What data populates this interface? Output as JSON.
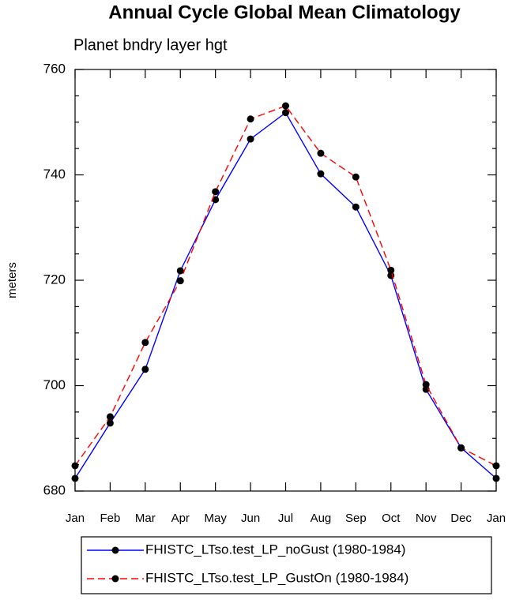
{
  "chart_data": {
    "type": "line",
    "title": "Annual Cycle Global Mean Climatology",
    "subtitle": "Planet bndry layer hgt",
    "y_label": "meters",
    "categories": [
      "Jan",
      "Feb",
      "Mar",
      "Apr",
      "May",
      "Jun",
      "Jul",
      "Aug",
      "Sep",
      "Oct",
      "Nov",
      "Dec",
      "Jan"
    ],
    "series": [
      {
        "name": "FHISTC_LTso.test_LP_noGust (1980-1984)",
        "color": "#0000ff",
        "style": "solid",
        "values": [
          682.4,
          692.9,
          703.1,
          721.8,
          735.3,
          746.8,
          751.8,
          740.2,
          733.9,
          720.9,
          699.3,
          688.2,
          682.4
        ]
      },
      {
        "name": "FHISTC_LTso.test_LP_GustOn (1980-1984)",
        "color": "#ff0000",
        "style": "dashed",
        "values": [
          684.8,
          694.1,
          708.2,
          719.9,
          736.8,
          750.6,
          753.1,
          744.1,
          739.6,
          721.9,
          700.2,
          688.2,
          684.8
        ]
      }
    ],
    "ylim": [
      680,
      760
    ],
    "yticks": [
      680,
      700,
      720,
      740,
      760
    ]
  }
}
